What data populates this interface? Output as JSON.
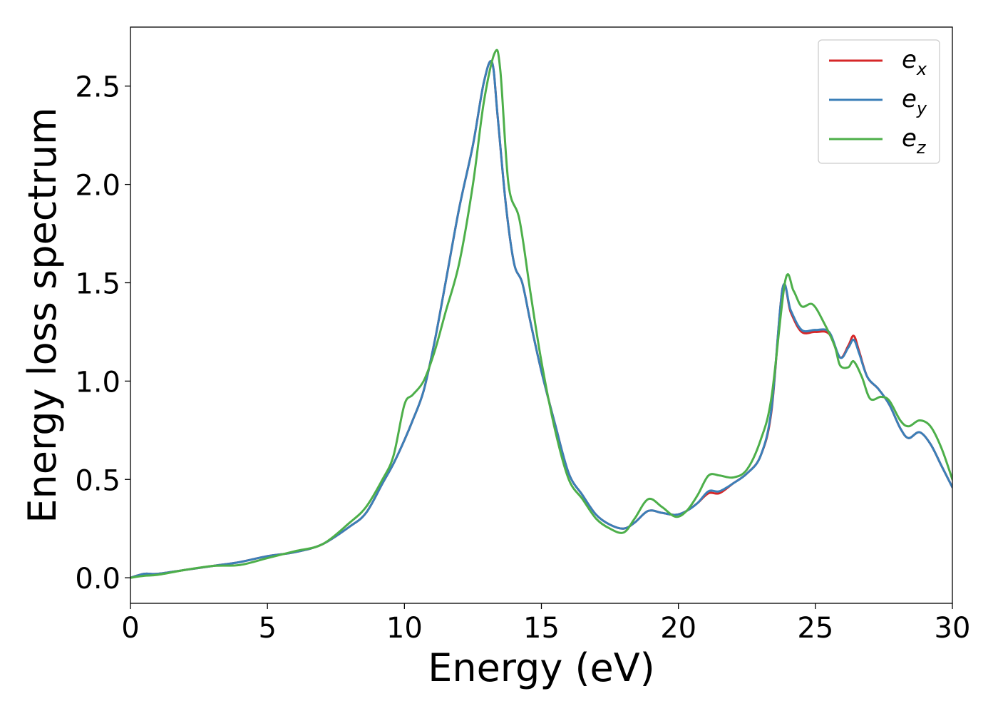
{
  "chart_data": {
    "type": "line",
    "title": "",
    "xlabel": "Energy (eV)",
    "ylabel": "Energy loss spectrum",
    "xlim": [
      0,
      30
    ],
    "ylim": [
      -0.13,
      2.8
    ],
    "xticks": [
      0,
      5,
      10,
      15,
      20,
      25,
      30
    ],
    "xtick_labels": [
      "0",
      "5",
      "10",
      "15",
      "20",
      "25",
      "30"
    ],
    "yticks": [
      0.0,
      0.5,
      1.0,
      1.5,
      2.0,
      2.5
    ],
    "ytick_labels": [
      "0.0",
      "0.5",
      "1.0",
      "1.5",
      "2.0",
      "2.5"
    ],
    "grid": false,
    "legend_position": "top-right",
    "legend": [
      {
        "base": "e",
        "sub": "x",
        "color": "#d62728"
      },
      {
        "base": "e",
        "sub": "y",
        "color": "#3b7fb8"
      },
      {
        "base": "e",
        "sub": "z",
        "color": "#4daf4a"
      }
    ],
    "series": [
      {
        "key": "ex",
        "color": "#d62728",
        "x": [
          0,
          0.5,
          1,
          2,
          3,
          4,
          5,
          6,
          7,
          8,
          8.6,
          9.2,
          9.6,
          10,
          10.3,
          10.7,
          11.1,
          11.5,
          12,
          12.5,
          12.9,
          13.2,
          13.4,
          13.7,
          14,
          14.3,
          14.6,
          15,
          15.5,
          16,
          16.5,
          17,
          17.5,
          18,
          18.4,
          18.9,
          19.4,
          19.9,
          20.3,
          20.7,
          21.1,
          21.5,
          22,
          22.5,
          23,
          23.4,
          23.8,
          24.1,
          24.5,
          25,
          25.5,
          25.9,
          26.2,
          26.4,
          26.6,
          26.9,
          27.3,
          27.7,
          28.1,
          28.4,
          28.8,
          29.2,
          29.6,
          30
        ],
        "y": [
          0,
          0.02,
          0.02,
          0.04,
          0.06,
          0.08,
          0.11,
          0.13,
          0.17,
          0.26,
          0.33,
          0.48,
          0.58,
          0.7,
          0.8,
          0.95,
          1.2,
          1.5,
          1.88,
          2.2,
          2.52,
          2.62,
          2.35,
          1.9,
          1.6,
          1.5,
          1.3,
          1.05,
          0.78,
          0.53,
          0.42,
          0.32,
          0.27,
          0.25,
          0.28,
          0.34,
          0.33,
          0.32,
          0.34,
          0.38,
          0.43,
          0.43,
          0.48,
          0.53,
          0.62,
          0.85,
          1.47,
          1.35,
          1.25,
          1.25,
          1.24,
          1.12,
          1.18,
          1.23,
          1.15,
          1.02,
          0.96,
          0.88,
          0.76,
          0.71,
          0.74,
          0.68,
          0.57,
          0.46
        ]
      },
      {
        "key": "ey",
        "color": "#3b7fb8",
        "x": [
          0,
          0.5,
          1,
          2,
          3,
          4,
          5,
          6,
          7,
          8,
          8.6,
          9.2,
          9.6,
          10,
          10.3,
          10.7,
          11.1,
          11.5,
          12,
          12.5,
          12.9,
          13.2,
          13.4,
          13.7,
          14,
          14.3,
          14.6,
          15,
          15.5,
          16,
          16.5,
          17,
          17.5,
          18,
          18.4,
          18.9,
          19.4,
          19.9,
          20.3,
          20.7,
          21.1,
          21.5,
          22,
          22.5,
          23,
          23.4,
          23.8,
          24.1,
          24.5,
          25,
          25.5,
          25.9,
          26.2,
          26.4,
          26.6,
          26.9,
          27.3,
          27.7,
          28.1,
          28.4,
          28.8,
          29.2,
          29.6,
          30
        ],
        "y": [
          0,
          0.02,
          0.02,
          0.04,
          0.06,
          0.08,
          0.11,
          0.13,
          0.17,
          0.26,
          0.33,
          0.48,
          0.58,
          0.7,
          0.8,
          0.95,
          1.2,
          1.5,
          1.88,
          2.2,
          2.52,
          2.62,
          2.35,
          1.9,
          1.6,
          1.5,
          1.3,
          1.05,
          0.78,
          0.53,
          0.42,
          0.32,
          0.27,
          0.25,
          0.28,
          0.34,
          0.33,
          0.32,
          0.34,
          0.38,
          0.44,
          0.44,
          0.48,
          0.53,
          0.62,
          0.86,
          1.47,
          1.36,
          1.26,
          1.26,
          1.25,
          1.12,
          1.17,
          1.21,
          1.14,
          1.02,
          0.96,
          0.88,
          0.76,
          0.71,
          0.74,
          0.68,
          0.57,
          0.46
        ]
      },
      {
        "key": "ez",
        "color": "#4daf4a",
        "x": [
          0,
          0.5,
          1,
          2,
          3,
          4,
          5,
          6,
          7,
          8,
          8.6,
          9.2,
          9.6,
          10,
          10.3,
          10.7,
          11.1,
          11.5,
          12,
          12.5,
          12.9,
          13.3,
          13.5,
          13.8,
          14.2,
          14.6,
          15,
          15.5,
          16,
          16.5,
          17,
          17.5,
          18,
          18.4,
          18.9,
          19.4,
          19.9,
          20.3,
          20.7,
          21.1,
          21.5,
          22,
          22.5,
          23,
          23.4,
          23.9,
          24.2,
          24.5,
          24.9,
          25.3,
          25.7,
          25.9,
          26.2,
          26.4,
          26.7,
          27,
          27.4,
          27.7,
          28.1,
          28.4,
          28.8,
          29.2,
          29.6,
          30
        ],
        "y": [
          0,
          0.01,
          0.015,
          0.04,
          0.06,
          0.065,
          0.1,
          0.135,
          0.17,
          0.28,
          0.36,
          0.5,
          0.62,
          0.88,
          0.93,
          1.0,
          1.15,
          1.35,
          1.6,
          2.0,
          2.42,
          2.67,
          2.58,
          2.0,
          1.82,
          1.45,
          1.1,
          0.75,
          0.5,
          0.4,
          0.3,
          0.25,
          0.23,
          0.3,
          0.4,
          0.36,
          0.31,
          0.34,
          0.42,
          0.52,
          0.52,
          0.51,
          0.55,
          0.7,
          0.92,
          1.51,
          1.46,
          1.38,
          1.39,
          1.3,
          1.18,
          1.08,
          1.07,
          1.1,
          1.02,
          0.91,
          0.92,
          0.9,
          0.8,
          0.77,
          0.8,
          0.77,
          0.66,
          0.5
        ]
      }
    ]
  }
}
